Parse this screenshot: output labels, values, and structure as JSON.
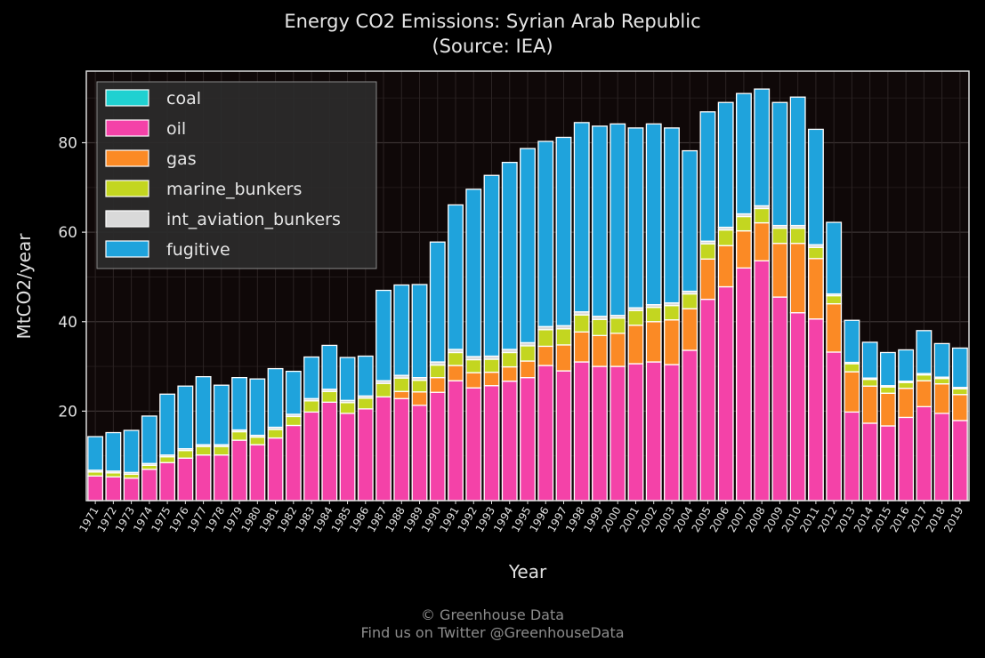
{
  "chart_data": {
    "type": "bar",
    "stacked": true,
    "title": "Energy CO2 Emissions: Syrian Arab Republic",
    "subtitle": "(Source: IEA)",
    "xlabel": "Year",
    "ylabel": "MtCO2/year",
    "ylim": [
      0,
      96
    ],
    "yticks": [
      20,
      40,
      60,
      80
    ],
    "grid": true,
    "legend_position": "top-left",
    "categories": [
      "1971",
      "1972",
      "1973",
      "1974",
      "1975",
      "1976",
      "1977",
      "1978",
      "1979",
      "1980",
      "1981",
      "1982",
      "1983",
      "1984",
      "1985",
      "1986",
      "1987",
      "1988",
      "1989",
      "1990",
      "1991",
      "1992",
      "1993",
      "1994",
      "1995",
      "1996",
      "1997",
      "1998",
      "1999",
      "2000",
      "2001",
      "2002",
      "2003",
      "2004",
      "2005",
      "2006",
      "2007",
      "2008",
      "2009",
      "2010",
      "2011",
      "2012",
      "2013",
      "2014",
      "2015",
      "2016",
      "2017",
      "2018",
      "2019"
    ],
    "series": [
      {
        "name": "coal",
        "color": "#1fd1d1",
        "values": [
          0,
          0,
          0,
          0,
          0,
          0,
          0,
          0,
          0,
          0,
          0,
          0,
          0,
          0,
          0,
          0,
          0,
          0,
          0,
          0,
          0,
          0,
          0,
          0,
          0,
          0,
          0,
          0,
          0,
          0,
          0,
          0,
          0,
          0,
          0,
          0,
          0,
          0,
          0,
          0,
          0,
          0,
          0,
          0,
          0,
          0,
          0,
          0,
          0
        ]
      },
      {
        "name": "oil",
        "color": "#f442a8",
        "values": [
          5.5,
          5.3,
          5.0,
          7.0,
          8.5,
          9.5,
          10.2,
          10.2,
          13.5,
          12.5,
          14.0,
          16.8,
          19.8,
          22.0,
          19.5,
          20.5,
          23.2,
          22.8,
          21.3,
          24.2,
          26.8,
          25.2,
          25.7,
          26.7,
          27.5,
          30.2,
          29.0,
          31.0,
          30.0,
          30.0,
          30.6,
          31.0,
          30.4,
          33.6,
          45.0,
          47.8,
          52.0,
          53.6,
          45.5,
          42.0,
          40.6,
          33.2,
          19.8,
          17.3,
          16.7,
          18.6,
          21.0,
          19.5,
          17.9
        ]
      },
      {
        "name": "gas",
        "color": "#fb8a25",
        "values": [
          0,
          0,
          0,
          0,
          0,
          0,
          0,
          0,
          0,
          0,
          0,
          0,
          0,
          0,
          0,
          0,
          0,
          1.6,
          3.0,
          3.3,
          3.4,
          3.4,
          3.0,
          3.2,
          3.7,
          4.3,
          5.8,
          6.7,
          6.9,
          7.4,
          8.6,
          9.0,
          10.0,
          9.3,
          9.0,
          9.2,
          8.3,
          8.5,
          12.0,
          15.5,
          13.5,
          10.8,
          9.0,
          8.3,
          7.3,
          6.5,
          5.8,
          6.6,
          5.8
        ]
      },
      {
        "name": "marine_bunkers",
        "color": "#c3d620",
        "values": [
          0.9,
          0.9,
          0.9,
          0.9,
          1.3,
          1.7,
          1.9,
          1.9,
          1.9,
          1.7,
          1.9,
          2.0,
          2.5,
          2.4,
          2.4,
          2.4,
          3.0,
          3.0,
          2.6,
          2.8,
          2.9,
          2.9,
          2.9,
          3.2,
          3.4,
          3.7,
          3.6,
          3.8,
          3.6,
          3.4,
          3.3,
          3.2,
          3.2,
          3.3,
          3.4,
          3.5,
          3.2,
          3.2,
          3.4,
          3.4,
          2.5,
          1.8,
          1.8,
          1.5,
          1.4,
          1.3,
          1.3,
          1.2,
          1.3
        ]
      },
      {
        "name": "int_aviation_bunkers",
        "color": "#d9d9d9",
        "values": [
          0.4,
          0.4,
          0.4,
          0.4,
          0.4,
          0.4,
          0.4,
          0.4,
          0.4,
          0.4,
          0.5,
          0.5,
          0.5,
          0.5,
          0.5,
          0.5,
          0.6,
          0.6,
          0.6,
          0.7,
          0.7,
          0.7,
          0.7,
          0.7,
          0.7,
          0.7,
          0.7,
          0.7,
          0.7,
          0.6,
          0.6,
          0.6,
          0.6,
          0.6,
          0.6,
          0.6,
          0.6,
          0.6,
          0.6,
          0.6,
          0.6,
          0.4,
          0.3,
          0.3,
          0.3,
          0.3,
          0.3,
          0.3,
          0.3
        ]
      },
      {
        "name": "fugitive",
        "color": "#1fa3dc",
        "values": [
          7.5,
          8.6,
          9.4,
          10.6,
          13.6,
          14.0,
          15.2,
          13.3,
          11.7,
          12.6,
          13.1,
          9.6,
          9.3,
          9.8,
          9.6,
          8.9,
          20.2,
          20.2,
          20.8,
          26.8,
          32.3,
          37.4,
          40.4,
          41.8,
          43.4,
          41.4,
          42.1,
          42.3,
          42.5,
          42.8,
          40.2,
          40.4,
          39.1,
          31.4,
          28.9,
          27.9,
          26.9,
          26.1,
          27.5,
          28.7,
          25.8,
          16.0,
          9.4,
          8.0,
          7.4,
          7.0,
          9.6,
          7.5,
          8.8
        ]
      }
    ]
  },
  "footer": {
    "copyright": "© Greenhouse Data",
    "social": "Find us on Twitter @GreenhouseData"
  }
}
